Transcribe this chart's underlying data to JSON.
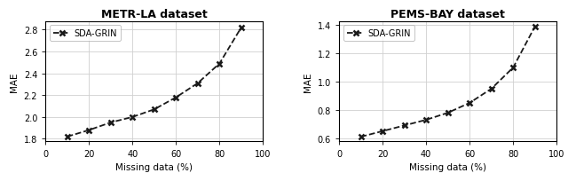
{
  "left": {
    "title": "METR-LA dataset",
    "xlabel": "Missing data (%)",
    "ylabel": "MAE",
    "x": [
      10,
      20,
      30,
      40,
      50,
      60,
      70,
      80,
      90
    ],
    "y": [
      1.82,
      1.88,
      1.95,
      2.0,
      2.07,
      2.18,
      2.31,
      2.49,
      2.82
    ],
    "xlim": [
      0,
      100
    ],
    "ylim": [
      1.78,
      2.88
    ],
    "yticks": [
      1.8,
      2.0,
      2.2,
      2.4,
      2.6,
      2.8
    ],
    "xticks": [
      0,
      20,
      40,
      60,
      80,
      100
    ]
  },
  "right": {
    "title": "PEMS-BAY dataset",
    "xlabel": "Missing data (%)",
    "ylabel": "MAE",
    "x": [
      10,
      20,
      30,
      40,
      50,
      60,
      70,
      80,
      90
    ],
    "y": [
      0.61,
      0.65,
      0.69,
      0.73,
      0.78,
      0.85,
      0.95,
      1.1,
      1.39
    ],
    "xlim": [
      0,
      100
    ],
    "ylim": [
      0.58,
      1.43
    ],
    "yticks": [
      0.6,
      0.8,
      1.0,
      1.2,
      1.4
    ],
    "xticks": [
      0,
      20,
      40,
      60,
      80,
      100
    ]
  },
  "legend_label": "SDA-GRIN",
  "line_color": "#1a1a1a",
  "marker": "x",
  "markersize": 5,
  "markeredgewidth": 1.8,
  "linewidth": 1.3,
  "linestyle": "--",
  "title_fontsize": 9,
  "label_fontsize": 7.5,
  "tick_fontsize": 7,
  "legend_fontsize": 7,
  "grid_color": "#d0d0d0",
  "grid_linewidth": 0.6
}
